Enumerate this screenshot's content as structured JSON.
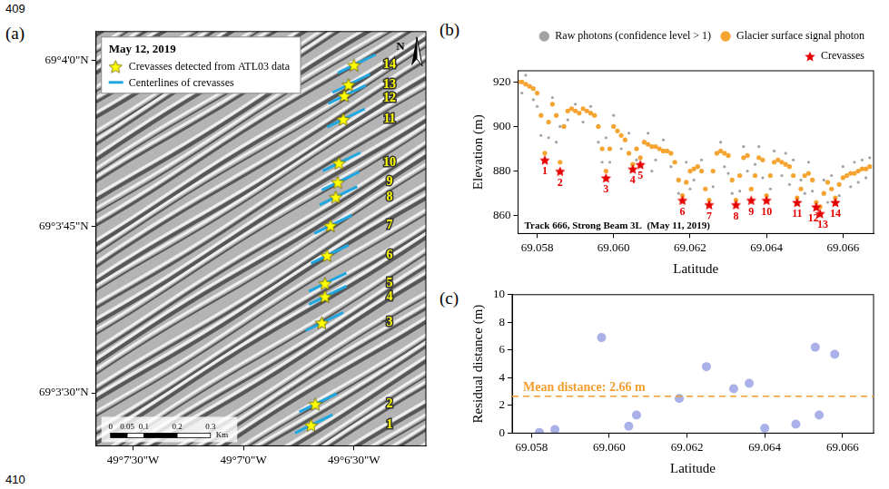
{
  "line_numbers": [
    "409",
    "410"
  ],
  "chart_data": [
    {
      "type": "map",
      "panel": "(a)",
      "title": "May 12, 2019",
      "legend": "top left",
      "grid": false,
      "xlim": [
        -49.1278,
        -49.1029
      ],
      "ylim": [
        69.057,
        69.0674
      ],
      "xticks": [
        {
          "value": -49.125,
          "label": "49°7'30\"W"
        },
        {
          "value": -49.11667,
          "label": "49°7'0\"W"
        },
        {
          "value": -49.10833,
          "label": "49°6'30\"W"
        }
      ],
      "yticks": [
        {
          "value": 69.05833,
          "label": "69°3'30\"N"
        },
        {
          "value": 69.0625,
          "label": "69°3'45\"N"
        },
        {
          "value": 69.06667,
          "label": "69°4'0\"N"
        }
      ],
      "series": [
        {
          "name": "Crevasses detected from ATL03 data",
          "color": "#ffff00",
          "marker": "star",
          "x": [
            -49.11157,
            -49.11125,
            -49.11076,
            -49.11052,
            -49.11052,
            -49.11036,
            -49.11011,
            -49.10971,
            -49.10955,
            -49.10947,
            -49.10914,
            -49.10906,
            -49.10874,
            -49.10833
          ],
          "values": [
            69.05752,
            69.05805,
            69.06009,
            69.06075,
            69.06108,
            69.06178,
            69.06253,
            69.06325,
            69.06362,
            69.0641,
            69.0652,
            69.06579,
            69.06607,
            69.06656
          ],
          "point_labels": [
            "1",
            "2",
            "3",
            "4",
            "5",
            "6",
            "7",
            "8",
            "9",
            "10",
            "11",
            "12",
            "13",
            "14"
          ]
        },
        {
          "name": "Centerlines of crevasses",
          "color": "#1ea7e1",
          "line_style": "solid",
          "segments": [
            [
              [
                -49.11278,
                69.05732
              ],
              [
                -49.10995,
                69.05778
              ]
            ],
            [
              [
                -49.11246,
                69.05785
              ],
              [
                -49.10963,
                69.05831
              ]
            ],
            [
              [
                -49.11197,
                69.05989
              ],
              [
                -49.10914,
                69.06035
              ]
            ],
            [
              [
                -49.11173,
                69.06055
              ],
              [
                -49.1089,
                69.06101
              ]
            ],
            [
              [
                -49.11173,
                69.06088
              ],
              [
                -49.1089,
                69.06134
              ]
            ],
            [
              [
                -49.11157,
                69.06158
              ],
              [
                -49.10874,
                69.06204
              ]
            ],
            [
              [
                -49.11132,
                69.06233
              ],
              [
                -49.10849,
                69.06279
              ]
            ],
            [
              [
                -49.11092,
                69.06305
              ],
              [
                -49.10809,
                69.06351
              ]
            ],
            [
              [
                -49.11076,
                69.06342
              ],
              [
                -49.10793,
                69.06388
              ]
            ],
            [
              [
                -49.11068,
                69.0639
              ],
              [
                -49.10785,
                69.06436
              ]
            ],
            [
              [
                -49.11035,
                69.065
              ],
              [
                -49.10752,
                69.06546
              ]
            ],
            [
              [
                -49.11027,
                69.06559
              ],
              [
                -49.10744,
                69.06605
              ]
            ],
            [
              [
                -49.10995,
                69.06587
              ],
              [
                -49.10712,
                69.06633
              ]
            ],
            [
              [
                -49.10954,
                69.06636
              ],
              [
                -49.10671,
                69.06682
              ]
            ]
          ]
        }
      ],
      "north_arrow": "N",
      "scale_bar": {
        "ticks": [
          0,
          0.05,
          0.1,
          0.2,
          0.3
        ],
        "unit": "Km"
      }
    },
    {
      "type": "scatter",
      "panel": "(b)",
      "xlabel": "Latitude",
      "ylabel": "Elevation (m)",
      "annotation": "Track 666, Strong Beam 3L  (May 11, 2019)",
      "legend": "top right",
      "grid": false,
      "xlim": [
        69.0575,
        69.0668
      ],
      "ylim": [
        852,
        925
      ],
      "xticks": [
        69.058,
        {
          "value": 69.06,
          "label": "69.060"
        },
        69.062,
        69.064,
        69.066
      ],
      "yticks": [
        860,
        880,
        900,
        920
      ],
      "series": [
        {
          "name": "Raw photons (confidence level > 1)",
          "color": "#a3a3a3",
          "marker": "circle",
          "x": [
            69.0576,
            69.0577,
            69.0579,
            69.058,
            69.0581,
            69.0583,
            69.0584,
            69.0585,
            69.0586,
            69.0588,
            69.059,
            69.0592,
            69.0594,
            69.0596,
            69.0597,
            69.0598,
            69.0599,
            69.06,
            69.0602,
            69.0604,
            69.0606,
            69.0609,
            69.061,
            69.0611,
            69.0613,
            69.0615,
            69.0617,
            69.0619,
            69.062,
            69.0621,
            69.0623,
            69.0626,
            69.0628,
            69.0629,
            69.063,
            69.0631,
            69.0633,
            69.0634,
            69.0635,
            69.0637,
            69.0638,
            69.0639,
            69.0641,
            69.0642,
            69.0644,
            69.0645,
            69.0646,
            69.0647,
            69.0649,
            69.065,
            69.0651,
            69.0652,
            69.0655,
            69.0656,
            69.0657,
            69.0659,
            69.066,
            69.0662,
            69.0663,
            69.0664,
            69.0665,
            69.0666,
            69.0667
          ],
          "values": [
            915,
            923,
            912,
            909,
            896,
            895,
            913,
            893,
            900,
            903,
            910,
            902,
            909,
            893,
            884,
            895,
            884,
            905,
            890,
            897,
            885,
            897,
            880,
            885,
            894,
            882,
            870,
            884,
            872,
            876,
            885,
            873,
            893,
            882,
            879,
            870,
            871,
            891,
            880,
            883,
            891,
            877,
            872,
            889,
            878,
            888,
            874,
            885,
            876,
            870,
            884,
            871,
            876,
            866,
            878,
            869,
            882,
            873,
            884,
            875,
            885,
            877,
            886
          ]
        },
        {
          "name": "Glacier surface signal photon",
          "color": "#f5a431",
          "marker": "circle",
          "x": [
            69.0575,
            69.0576,
            69.0577,
            69.0578,
            69.0579,
            69.058,
            69.0581,
            69.0582,
            69.0583,
            69.0584,
            69.0585,
            69.0586,
            69.0587,
            69.0588,
            69.0589,
            69.059,
            69.0591,
            69.0592,
            69.0593,
            69.0594,
            69.0595,
            69.0596,
            69.0597,
            69.0598,
            69.0599,
            69.06,
            69.0601,
            69.0602,
            69.0603,
            69.0604,
            69.0605,
            69.0606,
            69.0607,
            69.0608,
            69.0609,
            69.061,
            69.0611,
            69.0612,
            69.0613,
            69.0614,
            69.0615,
            69.0616,
            69.0617,
            69.0618,
            69.0619,
            69.062,
            69.0621,
            69.0622,
            69.0623,
            69.0624,
            69.0625,
            69.0626,
            69.0627,
            69.0628,
            69.0629,
            69.063,
            69.0631,
            69.0632,
            69.0633,
            69.0634,
            69.0635,
            69.0636,
            69.0637,
            69.0638,
            69.0639,
            69.064,
            69.0641,
            69.0642,
            69.0643,
            69.0644,
            69.0645,
            69.0646,
            69.0647,
            69.0648,
            69.0649,
            69.065,
            69.0651,
            69.0652,
            69.0653,
            69.0654,
            69.0655,
            69.0656,
            69.0657,
            69.0658,
            69.0659,
            69.066,
            69.0661,
            69.0662,
            69.0663,
            69.0664,
            69.0665,
            69.0666,
            69.0667
          ],
          "values": [
            920,
            920,
            919,
            918,
            917,
            915,
            905,
            888,
            902,
            910,
            905,
            884,
            900,
            907,
            908,
            907,
            906,
            908,
            907,
            906,
            905,
            900,
            890,
            880,
            890,
            900,
            898,
            896,
            894,
            888,
            883,
            890,
            886,
            893,
            892,
            891,
            891,
            890,
            889,
            889,
            888,
            884,
            876,
            869,
            875,
            880,
            881,
            882,
            880,
            872,
            867,
            880,
            888,
            889,
            888,
            887,
            876,
            867,
            878,
            886,
            887,
            872,
            878,
            886,
            885,
            869,
            878,
            884,
            885,
            884,
            883,
            882,
            878,
            868,
            872,
            878,
            879,
            876,
            866,
            864,
            870,
            875,
            872,
            868,
            874,
            877,
            878,
            879,
            879,
            880,
            881,
            881,
            882
          ]
        },
        {
          "name": "Crevasses",
          "color": "#e60000",
          "marker": "star",
          "x": [
            69.0582,
            69.0586,
            69.0598,
            69.0605,
            69.0607,
            69.0618,
            69.0625,
            69.0632,
            69.0636,
            69.064,
            69.0648,
            69.0653,
            69.0654,
            69.0658
          ],
          "values": [
            885,
            880,
            877,
            881,
            883,
            867,
            865,
            865,
            867,
            867,
            866,
            864,
            861,
            866
          ],
          "point_labels": [
            "1",
            "2",
            "3",
            "4",
            "5",
            "6",
            "7",
            "8",
            "9",
            "10",
            "11",
            "12",
            "13",
            "14"
          ]
        }
      ]
    },
    {
      "type": "scatter",
      "panel": "(c)",
      "xlabel": "Latitude",
      "ylabel": "Residual distance (m)",
      "grid": false,
      "xlim": [
        69.0575,
        69.0668
      ],
      "ylim": [
        0,
        10
      ],
      "xticks": [
        69.058,
        {
          "value": 69.06,
          "label": "69.060"
        },
        69.062,
        69.064,
        69.066
      ],
      "yticks": [
        0,
        2,
        4,
        6,
        8,
        10
      ],
      "series": [
        {
          "color": "#aab0e8",
          "marker": "circle",
          "x": [
            69.0582,
            69.0586,
            69.0598,
            69.0605,
            69.0607,
            69.0618,
            69.0625,
            69.0632,
            69.0636,
            69.064,
            69.0648,
            69.0653,
            69.0654,
            69.0658
          ],
          "values": [
            0.05,
            0.25,
            6.9,
            0.5,
            1.3,
            2.5,
            4.8,
            3.2,
            3.6,
            0.35,
            0.65,
            6.2,
            1.3,
            5.7
          ]
        }
      ],
      "mean_line": {
        "value": 2.66,
        "label": "Mean distance: 2.66 m",
        "color": "#f29e2e",
        "line_style": "dashed"
      }
    }
  ]
}
